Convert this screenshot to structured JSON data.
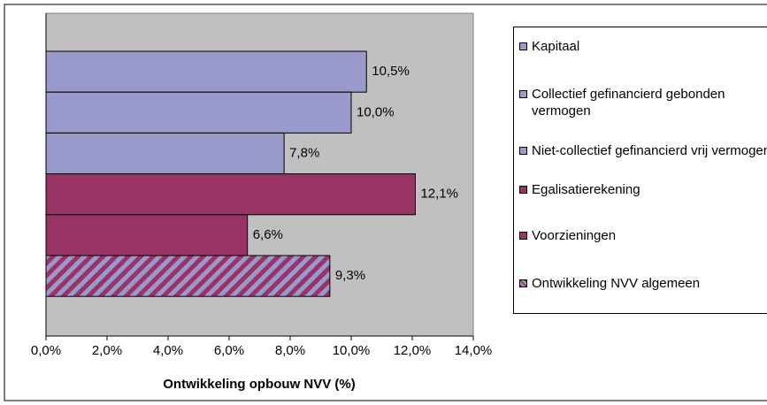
{
  "chart_data": {
    "type": "hbar",
    "categories": [
      "Kapitaal",
      "Collectief gefinancierd gebonden vermogen",
      "Niet-collectief gefinancierd vrij vermogen",
      "Egalisatierekening",
      "Voorzieningen",
      "Ontwikkeling NVV algemeen"
    ],
    "values": [
      10.5,
      10.0,
      7.8,
      12.1,
      6.6,
      9.3
    ],
    "value_labels": [
      "10,5%",
      "10,0%",
      "7,8%",
      "12,1%",
      "6,6%",
      "9,3%"
    ],
    "colors": [
      "#9999cc",
      "#9999cc",
      "#9999cc",
      "#993366",
      "#993366",
      "#993366"
    ],
    "hatch": [
      false,
      false,
      false,
      false,
      false,
      true
    ],
    "xlabel": "Ontwikkeling opbouw NVV (%)",
    "xlim": [
      0,
      14
    ],
    "xticks": [
      {
        "value": 0,
        "label": "0,0%"
      },
      {
        "value": 2,
        "label": "2,0%"
      },
      {
        "value": 4,
        "label": "4,0%"
      },
      {
        "value": 6,
        "label": "6,0%"
      },
      {
        "value": 8,
        "label": "8,0%"
      },
      {
        "value": 10,
        "label": "10,0%"
      },
      {
        "value": 12,
        "label": "12,0%"
      },
      {
        "value": 14,
        "label": "14,0%"
      }
    ],
    "legend": "right"
  }
}
